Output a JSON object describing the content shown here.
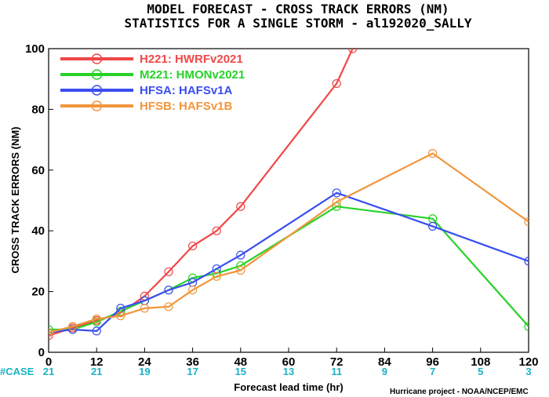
{
  "chart_data": {
    "type": "line",
    "title": "MODEL FORECAST - CROSS TRACK ERRORS (NM)",
    "subtitle": "STATISTICS FOR A SINGLE STORM - al192020_SALLY",
    "xlabel": "Forecast lead time (hr)",
    "ylabel": "CROSS TRACK ERRORS (NM)",
    "xlim": [
      0,
      120
    ],
    "ylim": [
      0,
      100
    ],
    "x_ticks": [
      0,
      12,
      24,
      36,
      48,
      60,
      72,
      84,
      96,
      108,
      120
    ],
    "y_ticks": [
      0,
      20,
      40,
      60,
      80,
      100
    ],
    "grid": false,
    "legend_position": "top-left",
    "case_label": "#CASE",
    "case_x": [
      0,
      12,
      24,
      36,
      48,
      60,
      72,
      84,
      96,
      108,
      120
    ],
    "case_counts": [
      "21",
      "21",
      "19",
      "17",
      "15",
      "13",
      "11",
      "9",
      "7",
      "5",
      "3"
    ],
    "credit": "Hurricane project - NOAA/NCEP/EMC",
    "series": [
      {
        "name": "H221: HWRFv2021",
        "color": "#f04848",
        "points": [
          [
            0,
            5.5
          ],
          [
            6,
            8
          ],
          [
            12,
            10.5
          ],
          [
            18,
            13
          ],
          [
            24,
            18.5
          ],
          [
            30,
            26.5
          ],
          [
            36,
            35
          ],
          [
            42,
            40
          ],
          [
            48,
            48
          ],
          [
            72,
            88.5
          ],
          [
            76,
            100
          ]
        ]
      },
      {
        "name": "M221: HMONv2021",
        "color": "#28d228",
        "points": [
          [
            0,
            7.5
          ],
          [
            6,
            7.5
          ],
          [
            12,
            10
          ],
          [
            18,
            13.5
          ],
          [
            24,
            17
          ],
          [
            30,
            20.5
          ],
          [
            36,
            24.5
          ],
          [
            42,
            26
          ],
          [
            48,
            28.5
          ],
          [
            72,
            48
          ],
          [
            96,
            44
          ],
          [
            120,
            8.5
          ]
        ]
      },
      {
        "name": "HFSA: HAFSv1A",
        "color": "#3a4ef0",
        "points": [
          [
            0,
            6.5
          ],
          [
            6,
            7.5
          ],
          [
            12,
            7
          ],
          [
            18,
            14.5
          ],
          [
            24,
            17
          ],
          [
            30,
            20.5
          ],
          [
            36,
            23
          ],
          [
            42,
            27.5
          ],
          [
            48,
            32
          ],
          [
            72,
            52.5
          ],
          [
            96,
            41.5
          ],
          [
            120,
            30
          ]
        ]
      },
      {
        "name": "HFSB: HAFSv1B",
        "color": "#f0963c",
        "points": [
          [
            0,
            6.5
          ],
          [
            6,
            8.5
          ],
          [
            12,
            11
          ],
          [
            18,
            12
          ],
          [
            24,
            14.5
          ],
          [
            30,
            15
          ],
          [
            36,
            20.5
          ],
          [
            42,
            25
          ],
          [
            48,
            27
          ],
          [
            72,
            49.5
          ],
          [
            96,
            65.5
          ],
          [
            120,
            43
          ]
        ]
      }
    ]
  }
}
